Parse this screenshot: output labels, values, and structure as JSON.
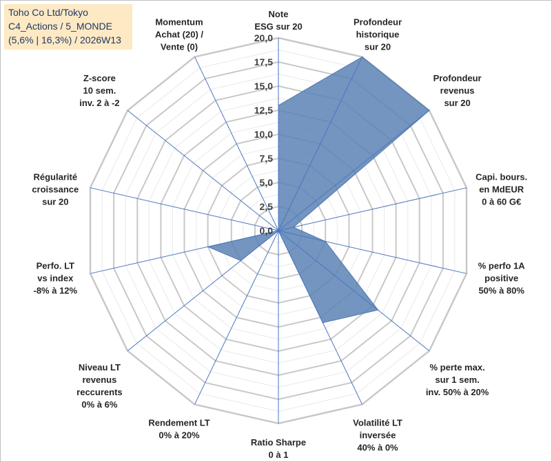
{
  "title": {
    "line1": "Toho Co Ltd/Tokyo",
    "line2": "C4_Actions / 5_MONDE",
    "line3": "(5,6% | 16,3%) / 2026W13"
  },
  "chart_data": {
    "type": "radar",
    "rmin": 0,
    "rmax": 20,
    "ticks": [
      "0,0",
      "2,5",
      "5,0",
      "7,5",
      "10,0",
      "12,5",
      "15,0",
      "17,5",
      "20,0"
    ],
    "tick_values": [
      0,
      2.5,
      5,
      7.5,
      10,
      12.5,
      15,
      17.5,
      20
    ],
    "grid_levels": 16,
    "colors": {
      "fill": "#5b83b5",
      "grid": "#c8c8c8",
      "spoke": "#4a76c0"
    },
    "axes": [
      {
        "label": [
          "Note",
          "ESG sur 20"
        ],
        "value": 13.0
      },
      {
        "label": [
          "Profondeur",
          "historique",
          "sur 20"
        ],
        "value": 20.0
      },
      {
        "label": [
          "Profondeur",
          "revenus",
          "sur 20"
        ],
        "value": 20.0
      },
      {
        "label": [
          "Capi. bours.",
          "en MdEUR",
          "0 à 60 G€"
        ],
        "value": 1.6
      },
      {
        "label": [
          "% perfo 1A",
          "positive",
          "50% à 80%"
        ],
        "value": 5.0
      },
      {
        "label": [
          "% perte max.",
          "sur 1 sem.",
          "inv. 50% à 20%"
        ],
        "value": 13.2
      },
      {
        "label": [
          "Volatilité LT",
          "inversée",
          "40% à 0%"
        ],
        "value": 10.6
      },
      {
        "label": [
          "Ratio Sharpe",
          "0 à 1"
        ],
        "value": 0.0
      },
      {
        "label": [
          "Rendement LT",
          "0% à 20%"
        ],
        "value": 0.0
      },
      {
        "label": [
          "Niveau LT",
          "revenus",
          "reccurents",
          "0% à 6%"
        ],
        "value": 5.0
      },
      {
        "label": [
          "Perfo. LT",
          "vs index",
          "-8% à 12%"
        ],
        "value": 7.5
      },
      {
        "label": [
          "Régularité",
          "croissance",
          "sur 20"
        ],
        "value": 0.0
      },
      {
        "label": [
          "Z-score",
          "10 sem.",
          "inv. 2 à -2"
        ],
        "value": 0.0
      },
      {
        "label": [
          "Momentum",
          "Achat (20) /",
          "Vente (0)"
        ],
        "value": 0.0
      }
    ]
  }
}
